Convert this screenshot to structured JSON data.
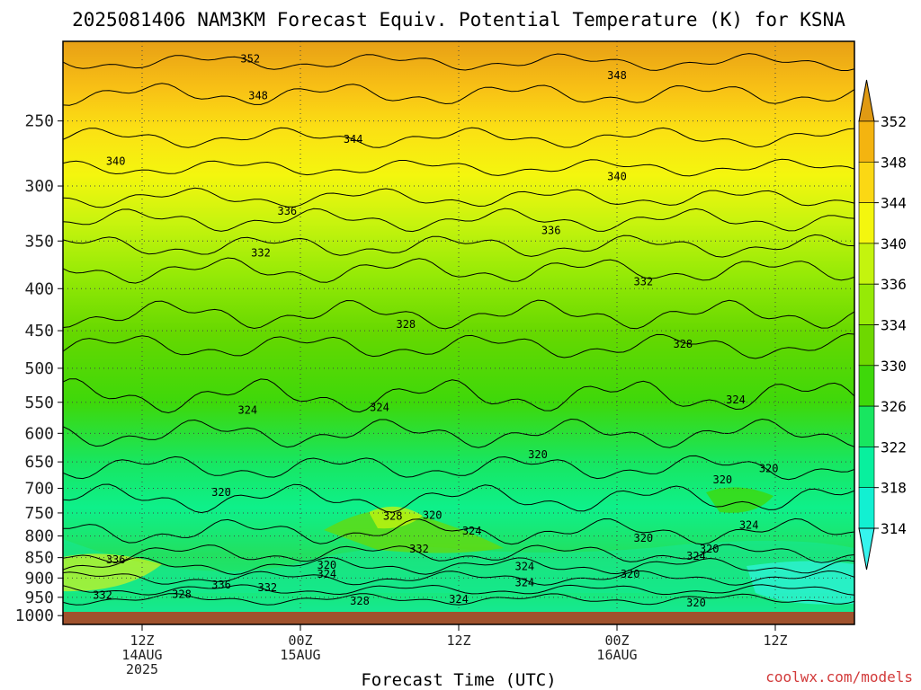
{
  "chart_data": {
    "type": "heatmap",
    "title": "2025081406 NAM3KM Forecast Equiv. Potential Temperature (K) for KSNA",
    "xlabel": "Forecast Time (UTC)",
    "ylabel": "",
    "pressure_ticks": [
      250,
      300,
      350,
      400,
      450,
      500,
      550,
      600,
      650,
      700,
      750,
      800,
      850,
      900,
      950,
      1000
    ],
    "time_ticks": [
      {
        "hour": 6,
        "lines": [
          "12Z",
          "14AUG",
          "2025"
        ]
      },
      {
        "hour": 18,
        "lines": [
          "00Z",
          "15AUG"
        ]
      },
      {
        "hour": 30,
        "lines": [
          "12Z",
          ""
        ]
      },
      {
        "hour": 42,
        "lines": [
          "00Z",
          "16AUG"
        ]
      },
      {
        "hour": 54,
        "lines": [
          "12Z",
          ""
        ]
      }
    ],
    "time_range_hours": [
      0,
      60
    ],
    "pressure_range_hpa": [
      200,
      1025
    ],
    "colorbar": {
      "ticks": [
        352,
        348,
        344,
        340,
        336,
        334,
        330,
        326,
        322,
        318,
        314
      ],
      "colors": [
        "#e09a13",
        "#f4b410",
        "#fbd814",
        "#f4f60e",
        "#c4f40e",
        "#96ea06",
        "#6ed800",
        "#3ed80a",
        "#18e660",
        "#08f09e",
        "#12f0d2",
        "#36f4ee"
      ]
    },
    "contour_labels": [
      {
        "value": "352",
        "hour": 14.2,
        "p": 210
      },
      {
        "value": "348",
        "hour": 14.8,
        "p": 233
      },
      {
        "value": "348",
        "hour": 42.0,
        "p": 220
      },
      {
        "value": "344",
        "hour": 22.0,
        "p": 263
      },
      {
        "value": "340",
        "hour": 4.0,
        "p": 280
      },
      {
        "value": "340",
        "hour": 42.0,
        "p": 292
      },
      {
        "value": "336",
        "hour": 17.0,
        "p": 322
      },
      {
        "value": "336",
        "hour": 37.0,
        "p": 340
      },
      {
        "value": "332",
        "hour": 15.0,
        "p": 362
      },
      {
        "value": "332",
        "hour": 44.0,
        "p": 392
      },
      {
        "value": "328",
        "hour": 26.0,
        "p": 442
      },
      {
        "value": "328",
        "hour": 47.0,
        "p": 467
      },
      {
        "value": "324",
        "hour": 14.0,
        "p": 562
      },
      {
        "value": "324",
        "hour": 24.0,
        "p": 558
      },
      {
        "value": "324",
        "hour": 51.0,
        "p": 546
      },
      {
        "value": "320",
        "hour": 12.0,
        "p": 708
      },
      {
        "value": "320",
        "hour": 36.0,
        "p": 637
      },
      {
        "value": "320",
        "hour": 50.0,
        "p": 683
      },
      {
        "value": "320",
        "hour": 53.5,
        "p": 662
      },
      {
        "value": "328",
        "hour": 25.0,
        "p": 757
      },
      {
        "value": "320",
        "hour": 28.0,
        "p": 755
      },
      {
        "value": "324",
        "hour": 31.0,
        "p": 789
      },
      {
        "value": "332",
        "hour": 27.0,
        "p": 830
      },
      {
        "value": "324",
        "hour": 52.0,
        "p": 776
      },
      {
        "value": "320",
        "hour": 44.0,
        "p": 805
      },
      {
        "value": "320",
        "hour": 49.0,
        "p": 830
      },
      {
        "value": "324",
        "hour": 48.0,
        "p": 846
      },
      {
        "value": "324",
        "hour": 35.0,
        "p": 871
      },
      {
        "value": "324",
        "hour": 35.0,
        "p": 912
      },
      {
        "value": "320",
        "hour": 43.0,
        "p": 890
      },
      {
        "value": "336",
        "hour": 4.0,
        "p": 855
      },
      {
        "value": "320",
        "hour": 20.0,
        "p": 868
      },
      {
        "value": "324",
        "hour": 20.0,
        "p": 890
      },
      {
        "value": "336",
        "hour": 12.0,
        "p": 918
      },
      {
        "value": "332",
        "hour": 15.5,
        "p": 925
      },
      {
        "value": "332",
        "hour": 3.0,
        "p": 945
      },
      {
        "value": "328",
        "hour": 9.0,
        "p": 942
      },
      {
        "value": "328",
        "hour": 22.5,
        "p": 960
      },
      {
        "value": "324",
        "hour": 30.0,
        "p": 955
      },
      {
        "value": "320",
        "hour": 48.0,
        "p": 965
      }
    ]
  },
  "credit": "coolwx.com/models"
}
